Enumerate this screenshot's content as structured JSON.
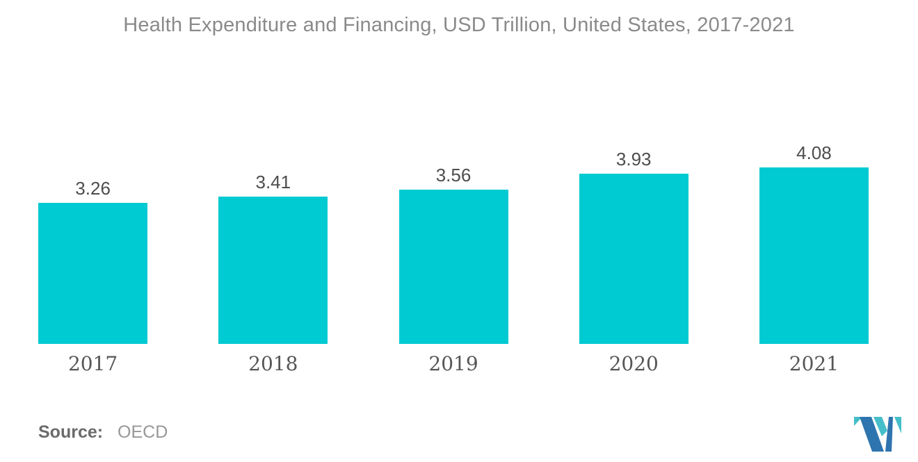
{
  "title": "Health Expenditure and Financing, USD Trillion, United States, 2017-2021",
  "source": {
    "label": "Source:",
    "value": "OECD"
  },
  "logo": {
    "name": "mordor-intelligence-logo",
    "blue": "#2E74AE",
    "teal": "#45BEC9"
  },
  "chart_data": {
    "type": "bar",
    "title": "Health Expenditure and Financing, USD Trillion, United States, 2017-2021",
    "categories": [
      "2017",
      "2018",
      "2019",
      "2020",
      "2021"
    ],
    "values": [
      3.26,
      3.41,
      3.56,
      3.93,
      4.08
    ],
    "value_labels": [
      "3.26",
      "3.41",
      "3.56",
      "3.93",
      "4.08"
    ],
    "xlabel": "",
    "ylabel": "",
    "ylim": [
      0,
      4.55
    ],
    "grid": false,
    "legend": null,
    "bar_color": "#00CAD2",
    "label_position": "above-bars"
  }
}
